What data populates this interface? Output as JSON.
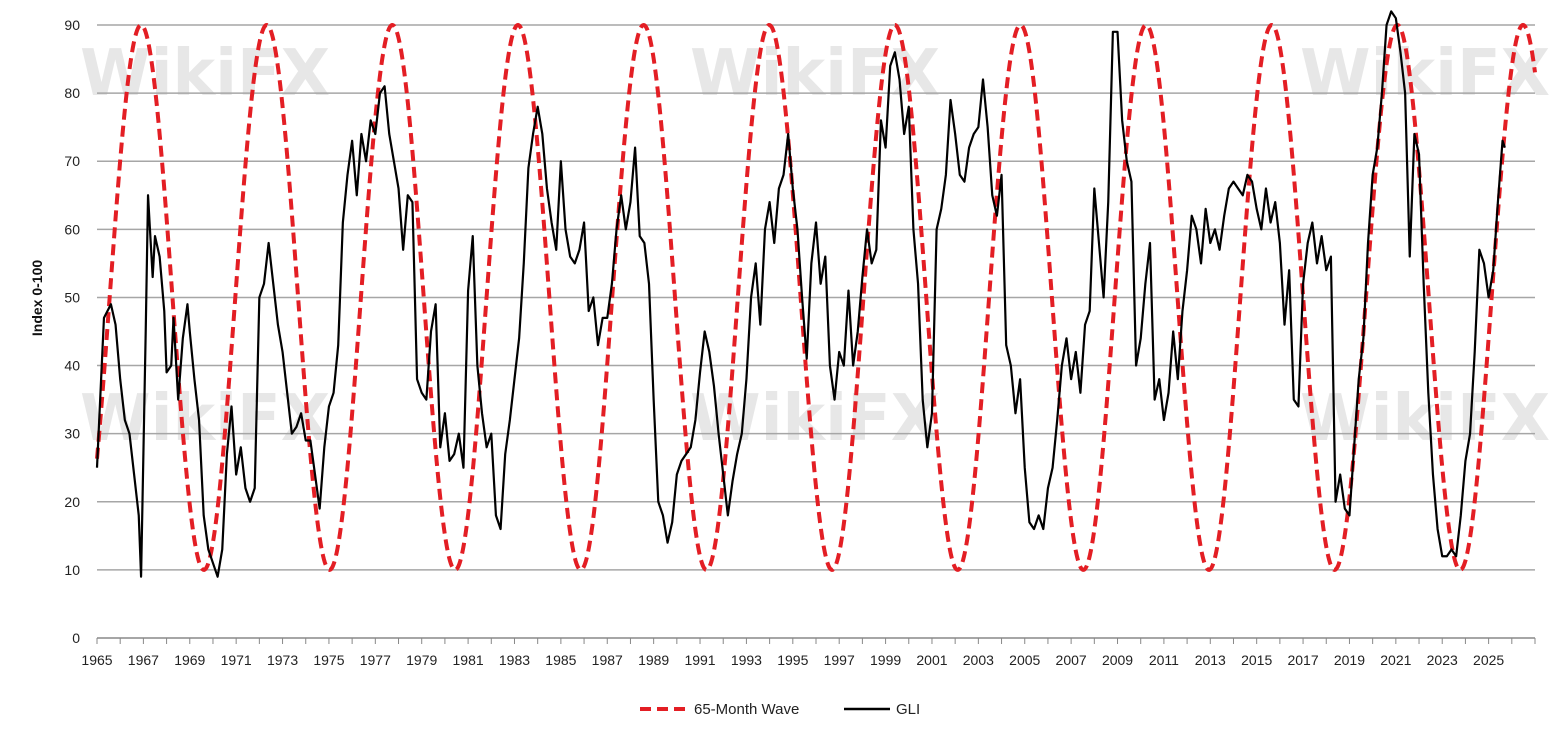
{
  "watermark_text": "WikiFX",
  "chart_data": {
    "type": "line",
    "ylabel": "Index 0-100",
    "ylim": [
      0,
      90
    ],
    "yticks": [
      0,
      10,
      20,
      30,
      40,
      50,
      60,
      70,
      80,
      90
    ],
    "xlim": [
      1965,
      2027
    ],
    "xticks": [
      "1965",
      "1967",
      "1969",
      "1971",
      "1973",
      "1975",
      "1977",
      "1979",
      "1981",
      "1983",
      "1985",
      "1987",
      "1989",
      "1991",
      "1993",
      "1995",
      "1997",
      "1999",
      "2001",
      "2003",
      "2005",
      "2007",
      "2009",
      "2011",
      "2013",
      "2015",
      "2017",
      "2019",
      "2021",
      "2023",
      "2025"
    ],
    "grid": "horizontal",
    "legend_position": "bottom",
    "series": [
      {
        "name": "65-Month Wave",
        "color": "#e31e24",
        "style": "dashed",
        "wave": {
          "period_years": 5.4167,
          "min": 10,
          "max": 90,
          "first_peak_year": 1966.9
        }
      },
      {
        "name": "GLI",
        "color": "#000000",
        "style": "solid",
        "points": [
          [
            1965.0,
            25
          ],
          [
            1965.3,
            47
          ],
          [
            1965.6,
            49
          ],
          [
            1965.8,
            46
          ],
          [
            1966.0,
            38
          ],
          [
            1966.2,
            32
          ],
          [
            1966.4,
            30
          ],
          [
            1966.6,
            24
          ],
          [
            1966.8,
            18
          ],
          [
            1966.9,
            9
          ],
          [
            1967.1,
            45
          ],
          [
            1967.2,
            65
          ],
          [
            1967.4,
            53
          ],
          [
            1967.5,
            59
          ],
          [
            1967.7,
            56
          ],
          [
            1967.9,
            48
          ],
          [
            1968.0,
            39
          ],
          [
            1968.2,
            40
          ],
          [
            1968.3,
            47
          ],
          [
            1968.5,
            35
          ],
          [
            1968.7,
            44
          ],
          [
            1968.9,
            49
          ],
          [
            1969.0,
            45
          ],
          [
            1969.2,
            38
          ],
          [
            1969.4,
            32
          ],
          [
            1969.6,
            18
          ],
          [
            1969.8,
            13
          ],
          [
            1970.0,
            11
          ],
          [
            1970.2,
            9
          ],
          [
            1970.4,
            13
          ],
          [
            1970.6,
            27
          ],
          [
            1970.8,
            34
          ],
          [
            1971.0,
            24
          ],
          [
            1971.2,
            28
          ],
          [
            1971.4,
            22
          ],
          [
            1971.6,
            20
          ],
          [
            1971.8,
            22
          ],
          [
            1972.0,
            50
          ],
          [
            1972.2,
            52
          ],
          [
            1972.4,
            58
          ],
          [
            1972.6,
            52
          ],
          [
            1972.8,
            46
          ],
          [
            1973.0,
            42
          ],
          [
            1973.2,
            36
          ],
          [
            1973.4,
            30
          ],
          [
            1973.6,
            31
          ],
          [
            1973.8,
            33
          ],
          [
            1974.0,
            29
          ],
          [
            1974.2,
            29
          ],
          [
            1974.4,
            24
          ],
          [
            1974.6,
            19
          ],
          [
            1974.8,
            28
          ],
          [
            1975.0,
            34
          ],
          [
            1975.2,
            36
          ],
          [
            1975.4,
            43
          ],
          [
            1975.6,
            61
          ],
          [
            1975.8,
            68
          ],
          [
            1976.0,
            73
          ],
          [
            1976.2,
            65
          ],
          [
            1976.4,
            74
          ],
          [
            1976.6,
            70
          ],
          [
            1976.8,
            76
          ],
          [
            1977.0,
            74
          ],
          [
            1977.2,
            80
          ],
          [
            1977.4,
            81
          ],
          [
            1977.6,
            74
          ],
          [
            1977.8,
            70
          ],
          [
            1978.0,
            66
          ],
          [
            1978.2,
            57
          ],
          [
            1978.4,
            65
          ],
          [
            1978.6,
            64
          ],
          [
            1978.8,
            38
          ],
          [
            1979.0,
            36
          ],
          [
            1979.2,
            35
          ],
          [
            1979.4,
            45
          ],
          [
            1979.6,
            49
          ],
          [
            1979.8,
            28
          ],
          [
            1980.0,
            33
          ],
          [
            1980.2,
            26
          ],
          [
            1980.4,
            27
          ],
          [
            1980.6,
            30
          ],
          [
            1980.8,
            25
          ],
          [
            1981.0,
            51
          ],
          [
            1981.2,
            59
          ],
          [
            1981.4,
            40
          ],
          [
            1981.6,
            33
          ],
          [
            1981.8,
            28
          ],
          [
            1982.0,
            30
          ],
          [
            1982.2,
            18
          ],
          [
            1982.4,
            16
          ],
          [
            1982.6,
            27
          ],
          [
            1982.8,
            32
          ],
          [
            1983.0,
            38
          ],
          [
            1983.2,
            44
          ],
          [
            1983.4,
            55
          ],
          [
            1983.6,
            69
          ],
          [
            1983.8,
            74
          ],
          [
            1984.0,
            78
          ],
          [
            1984.2,
            74
          ],
          [
            1984.4,
            66
          ],
          [
            1984.6,
            61
          ],
          [
            1984.8,
            57
          ],
          [
            1985.0,
            70
          ],
          [
            1985.2,
            60
          ],
          [
            1985.4,
            56
          ],
          [
            1985.6,
            55
          ],
          [
            1985.8,
            57
          ],
          [
            1986.0,
            61
          ],
          [
            1986.2,
            48
          ],
          [
            1986.4,
            50
          ],
          [
            1986.6,
            43
          ],
          [
            1986.8,
            47
          ],
          [
            1987.0,
            47
          ],
          [
            1987.2,
            52
          ],
          [
            1987.4,
            60
          ],
          [
            1987.6,
            65
          ],
          [
            1987.8,
            60
          ],
          [
            1988.0,
            64
          ],
          [
            1988.2,
            72
          ],
          [
            1988.4,
            59
          ],
          [
            1988.6,
            58
          ],
          [
            1988.8,
            52
          ],
          [
            1989.0,
            35
          ],
          [
            1989.2,
            20
          ],
          [
            1989.4,
            18
          ],
          [
            1989.6,
            14
          ],
          [
            1989.8,
            17
          ],
          [
            1990.0,
            24
          ],
          [
            1990.2,
            26
          ],
          [
            1990.4,
            27
          ],
          [
            1990.6,
            28
          ],
          [
            1990.8,
            32
          ],
          [
            1991.0,
            39
          ],
          [
            1991.2,
            45
          ],
          [
            1991.4,
            42
          ],
          [
            1991.6,
            37
          ],
          [
            1991.8,
            30
          ],
          [
            1992.0,
            24
          ],
          [
            1992.2,
            18
          ],
          [
            1992.4,
            23
          ],
          [
            1992.6,
            27
          ],
          [
            1992.8,
            30
          ],
          [
            1993.0,
            38
          ],
          [
            1993.2,
            50
          ],
          [
            1993.4,
            55
          ],
          [
            1993.6,
            46
          ],
          [
            1993.8,
            60
          ],
          [
            1994.0,
            64
          ],
          [
            1994.2,
            58
          ],
          [
            1994.4,
            66
          ],
          [
            1994.6,
            68
          ],
          [
            1994.8,
            74
          ],
          [
            1995.0,
            66
          ],
          [
            1995.2,
            60
          ],
          [
            1995.4,
            50
          ],
          [
            1995.6,
            41
          ],
          [
            1995.8,
            55
          ],
          [
            1996.0,
            61
          ],
          [
            1996.2,
            52
          ],
          [
            1996.4,
            56
          ],
          [
            1996.6,
            40
          ],
          [
            1996.8,
            35
          ],
          [
            1997.0,
            42
          ],
          [
            1997.2,
            40
          ],
          [
            1997.4,
            51
          ],
          [
            1997.6,
            40
          ],
          [
            1997.8,
            45
          ],
          [
            1998.0,
            53
          ],
          [
            1998.2,
            60
          ],
          [
            1998.4,
            55
          ],
          [
            1998.6,
            57
          ],
          [
            1998.8,
            76
          ],
          [
            1999.0,
            72
          ],
          [
            1999.2,
            84
          ],
          [
            1999.4,
            86
          ],
          [
            1999.6,
            82
          ],
          [
            1999.8,
            74
          ],
          [
            2000.0,
            78
          ],
          [
            2000.2,
            60
          ],
          [
            2000.4,
            52
          ],
          [
            2000.6,
            35
          ],
          [
            2000.8,
            28
          ],
          [
            2001.0,
            33
          ],
          [
            2001.2,
            60
          ],
          [
            2001.4,
            63
          ],
          [
            2001.6,
            68
          ],
          [
            2001.8,
            79
          ],
          [
            2002.0,
            74
          ],
          [
            2002.2,
            68
          ],
          [
            2002.4,
            67
          ],
          [
            2002.6,
            72
          ],
          [
            2002.8,
            74
          ],
          [
            2003.0,
            75
          ],
          [
            2003.2,
            82
          ],
          [
            2003.4,
            75
          ],
          [
            2003.6,
            65
          ],
          [
            2003.8,
            62
          ],
          [
            2004.0,
            68
          ],
          [
            2004.2,
            43
          ],
          [
            2004.4,
            40
          ],
          [
            2004.6,
            33
          ],
          [
            2004.8,
            38
          ],
          [
            2005.0,
            25
          ],
          [
            2005.2,
            17
          ],
          [
            2005.4,
            16
          ],
          [
            2005.6,
            18
          ],
          [
            2005.8,
            16
          ],
          [
            2006.0,
            22
          ],
          [
            2006.2,
            25
          ],
          [
            2006.4,
            32
          ],
          [
            2006.6,
            40
          ],
          [
            2006.8,
            44
          ],
          [
            2007.0,
            38
          ],
          [
            2007.2,
            42
          ],
          [
            2007.4,
            36
          ],
          [
            2007.6,
            46
          ],
          [
            2007.8,
            48
          ],
          [
            2008.0,
            66
          ],
          [
            2008.2,
            58
          ],
          [
            2008.4,
            50
          ],
          [
            2008.6,
            64
          ],
          [
            2008.8,
            89
          ],
          [
            2009.0,
            89
          ],
          [
            2009.2,
            76
          ],
          [
            2009.4,
            70
          ],
          [
            2009.6,
            67
          ],
          [
            2009.8,
            40
          ],
          [
            2010.0,
            44
          ],
          [
            2010.2,
            52
          ],
          [
            2010.4,
            58
          ],
          [
            2010.6,
            35
          ],
          [
            2010.8,
            38
          ],
          [
            2011.0,
            32
          ],
          [
            2011.2,
            36
          ],
          [
            2011.4,
            45
          ],
          [
            2011.6,
            38
          ],
          [
            2011.8,
            48
          ],
          [
            2012.0,
            54
          ],
          [
            2012.2,
            62
          ],
          [
            2012.4,
            60
          ],
          [
            2012.6,
            55
          ],
          [
            2012.8,
            63
          ],
          [
            2013.0,
            58
          ],
          [
            2013.2,
            60
          ],
          [
            2013.4,
            57
          ],
          [
            2013.6,
            62
          ],
          [
            2013.8,
            66
          ],
          [
            2014.0,
            67
          ],
          [
            2014.2,
            66
          ],
          [
            2014.4,
            65
          ],
          [
            2014.6,
            68
          ],
          [
            2014.8,
            67
          ],
          [
            2015.0,
            63
          ],
          [
            2015.2,
            60
          ],
          [
            2015.4,
            66
          ],
          [
            2015.6,
            61
          ],
          [
            2015.8,
            64
          ],
          [
            2016.0,
            58
          ],
          [
            2016.2,
            46
          ],
          [
            2016.4,
            54
          ],
          [
            2016.6,
            35
          ],
          [
            2016.8,
            34
          ],
          [
            2017.0,
            52
          ],
          [
            2017.2,
            58
          ],
          [
            2017.4,
            61
          ],
          [
            2017.6,
            55
          ],
          [
            2017.8,
            59
          ],
          [
            2018.0,
            54
          ],
          [
            2018.2,
            56
          ],
          [
            2018.4,
            20
          ],
          [
            2018.6,
            24
          ],
          [
            2018.8,
            19
          ],
          [
            2019.0,
            18
          ],
          [
            2019.2,
            28
          ],
          [
            2019.4,
            38
          ],
          [
            2019.6,
            44
          ],
          [
            2019.8,
            58
          ],
          [
            2020.0,
            68
          ],
          [
            2020.2,
            72
          ],
          [
            2020.4,
            80
          ],
          [
            2020.6,
            90
          ],
          [
            2020.8,
            92
          ],
          [
            2021.0,
            91
          ],
          [
            2021.2,
            86
          ],
          [
            2021.4,
            80
          ],
          [
            2021.6,
            56
          ],
          [
            2021.8,
            74
          ],
          [
            2022.0,
            71
          ],
          [
            2022.2,
            52
          ],
          [
            2022.4,
            36
          ],
          [
            2022.6,
            24
          ],
          [
            2022.8,
            16
          ],
          [
            2023.0,
            12
          ],
          [
            2023.2,
            12
          ],
          [
            2023.4,
            13
          ],
          [
            2023.6,
            12
          ],
          [
            2023.8,
            18
          ],
          [
            2024.0,
            26
          ],
          [
            2024.2,
            30
          ],
          [
            2024.4,
            42
          ],
          [
            2024.6,
            57
          ],
          [
            2024.8,
            55
          ],
          [
            2025.0,
            50
          ],
          [
            2025.2,
            54
          ],
          [
            2025.4,
            64
          ],
          [
            2025.6,
            73
          ],
          [
            2025.7,
            72
          ]
        ]
      }
    ]
  }
}
